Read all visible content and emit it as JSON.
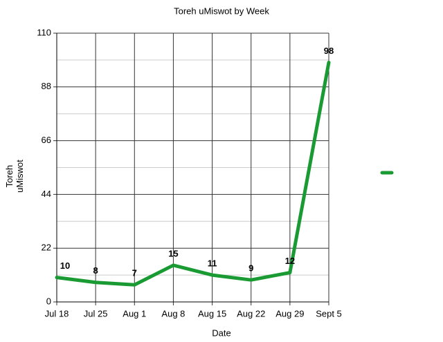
{
  "chart_data": {
    "type": "line",
    "title": "Toreh uMiswot by Week",
    "x_label": "Date",
    "y_label": "Toreh uMiswot",
    "categories": [
      "Jul 18",
      "Jul 25",
      "Aug 1",
      "Aug 8",
      "Aug 15",
      "Aug 22",
      "Aug 29",
      "Sept 5"
    ],
    "series": [
      {
        "color": "#1a9a32",
        "values": [
          10,
          8,
          7,
          15,
          11,
          9,
          12,
          98
        ]
      }
    ],
    "ylim": [
      0,
      110
    ],
    "yticks": [
      0,
      22,
      44,
      66,
      88,
      110
    ],
    "minor_yticks": [
      11,
      33,
      55,
      77,
      99
    ],
    "grid": true,
    "legend": "right"
  }
}
